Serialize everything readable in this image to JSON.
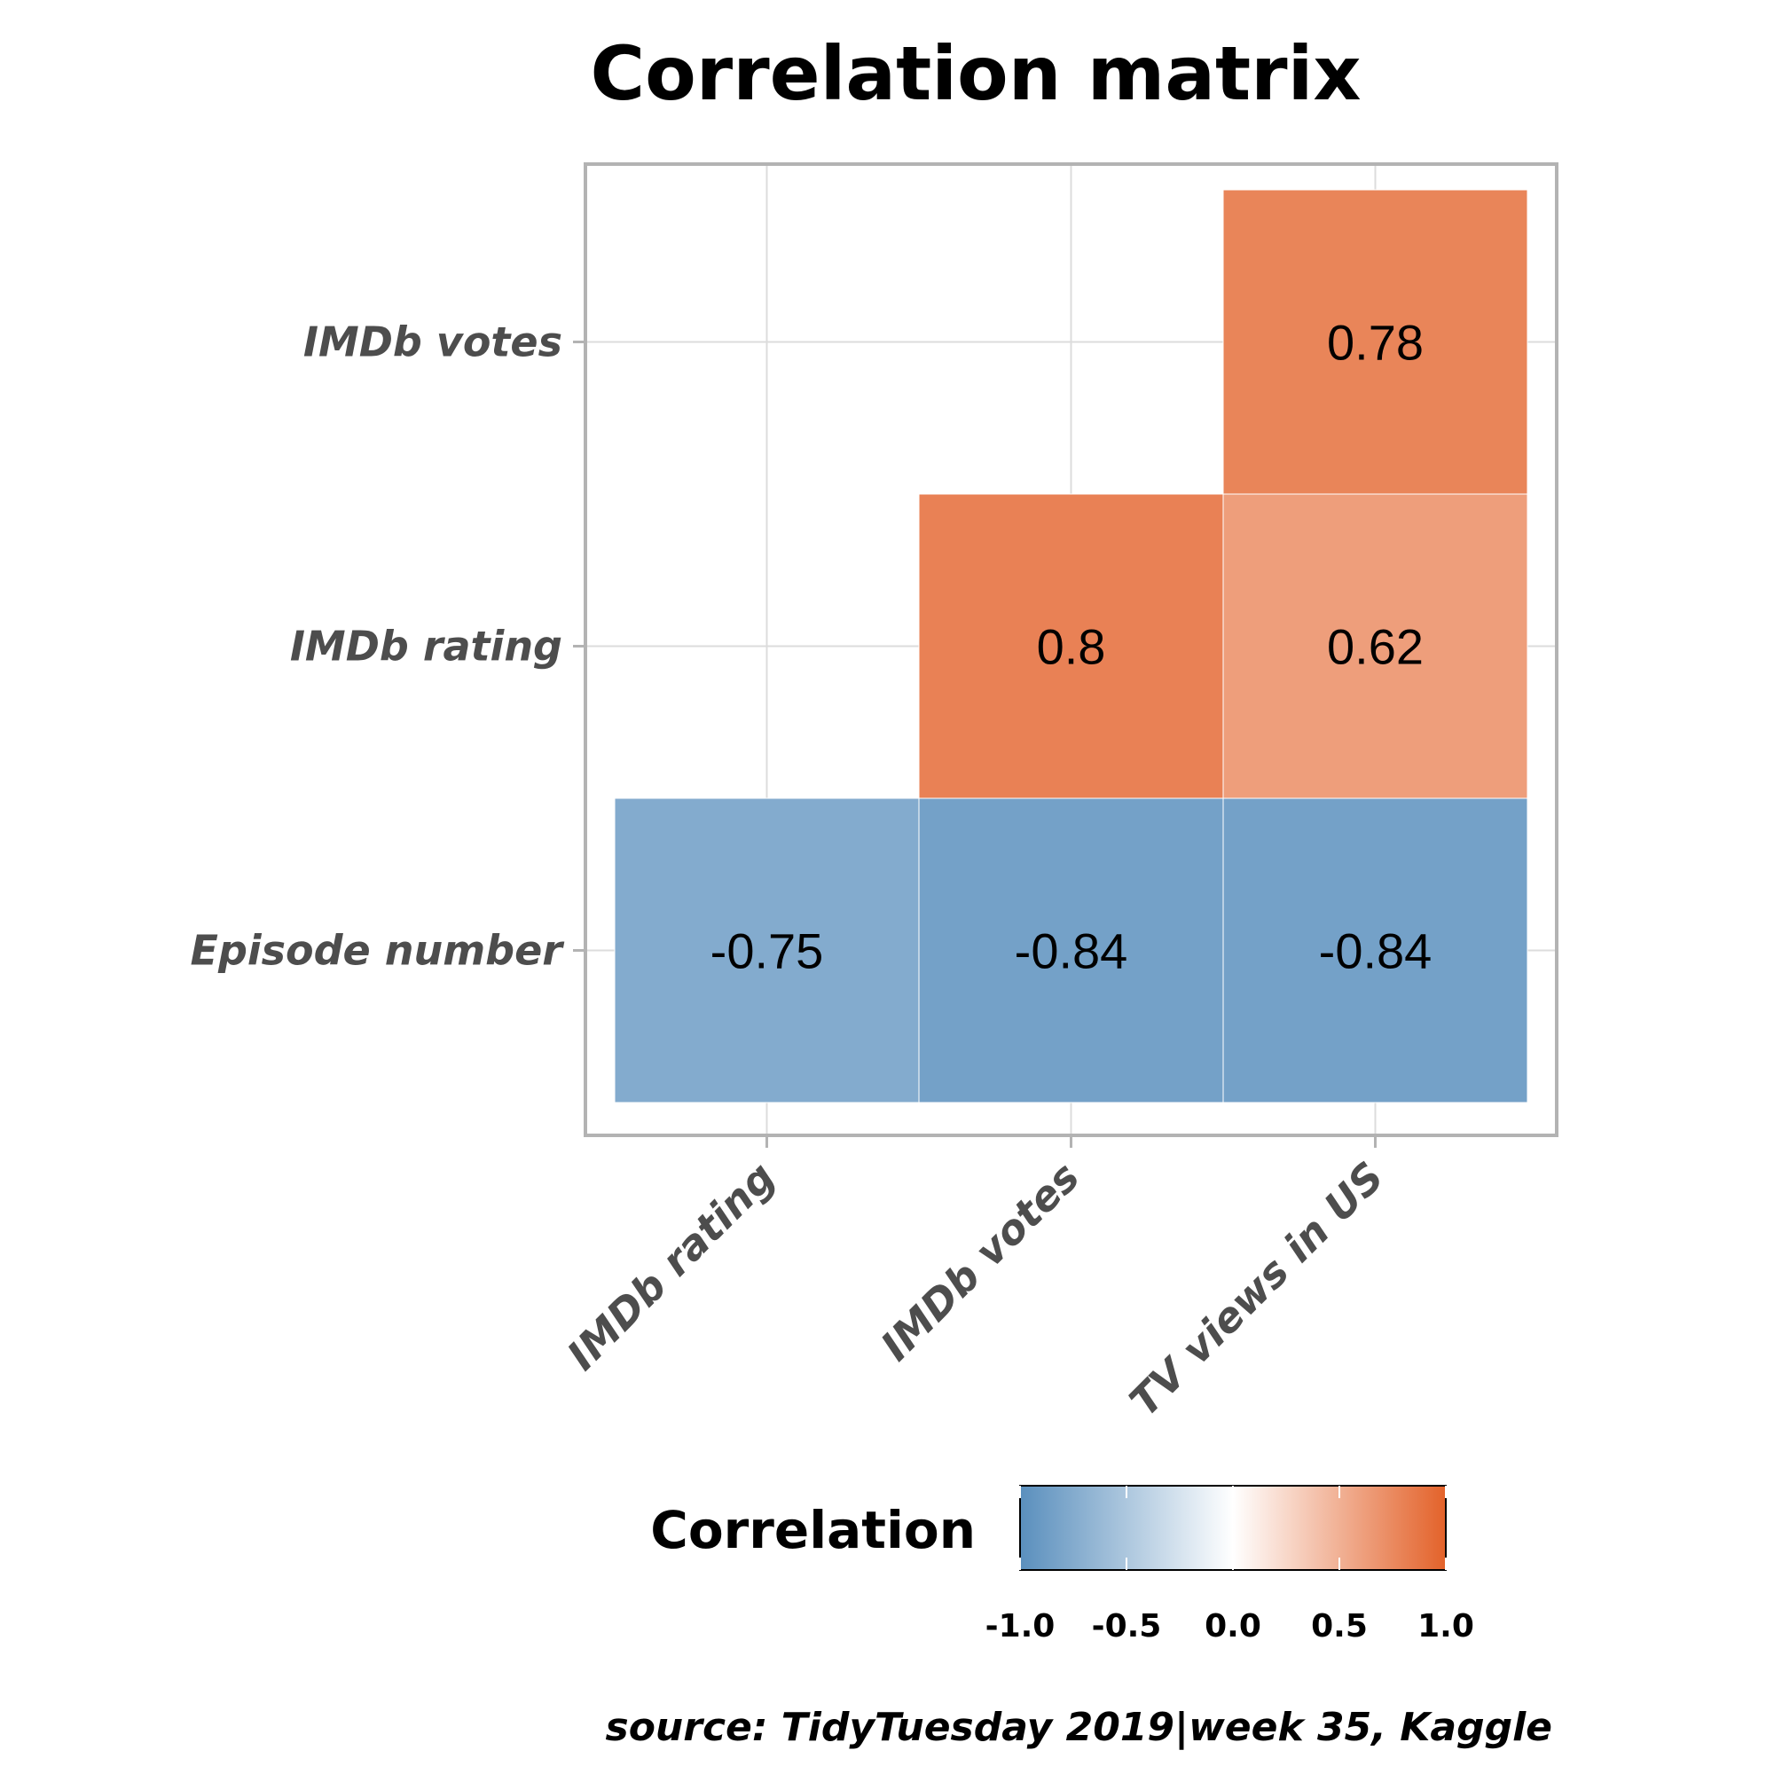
{
  "chart_data": {
    "type": "heatmap",
    "title": "Correlation matrix",
    "x_categories": [
      "IMDb rating",
      "IMDb votes",
      "TV views in US"
    ],
    "y_categories": [
      "Episode number",
      "IMDb rating",
      "IMDb votes"
    ],
    "cells": [
      {
        "x": "IMDb rating",
        "y": "Episode number",
        "value": -0.75,
        "label": "-0.75"
      },
      {
        "x": "IMDb votes",
        "y": "Episode number",
        "value": -0.84,
        "label": "-0.84"
      },
      {
        "x": "TV views in US",
        "y": "Episode number",
        "value": -0.84,
        "label": "-0.84"
      },
      {
        "x": "IMDb votes",
        "y": "IMDb rating",
        "value": 0.8,
        "label": "0.8"
      },
      {
        "x": "TV views in US",
        "y": "IMDb rating",
        "value": 0.62,
        "label": "0.62"
      },
      {
        "x": "TV views in US",
        "y": "IMDb votes",
        "value": 0.78,
        "label": "0.78"
      }
    ],
    "legend": {
      "title": "Correlation",
      "range": [
        -1,
        1
      ],
      "ticks": [
        "-1.0",
        "-0.5",
        "0.0",
        "0.5",
        "1.0"
      ],
      "low_color": "#5a8fbd",
      "mid_color": "#ffffff",
      "high_color": "#e3622a",
      "placement": "bottom"
    },
    "caption": "source: TidyTuesday 2019|week 35, Kaggle",
    "grid": true
  }
}
